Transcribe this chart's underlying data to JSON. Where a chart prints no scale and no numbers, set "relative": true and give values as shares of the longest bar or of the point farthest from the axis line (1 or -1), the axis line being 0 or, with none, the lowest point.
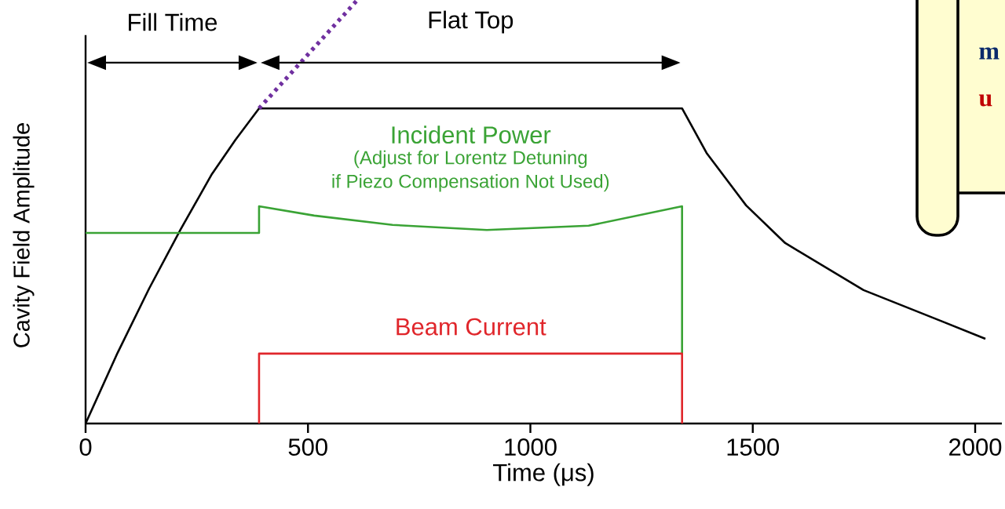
{
  "chart_data": {
    "type": "line",
    "relative": true,
    "xlabel": "Time (μs)",
    "ylabel": "Cavity Field Amplitude",
    "xlim": [
      0,
      2060
    ],
    "xticks": [
      0,
      500,
      1000,
      1500,
      2000
    ],
    "marker": "none",
    "series": [
      {
        "color": "#000000",
        "x": [
          0,
          72,
          143,
          214,
          284,
          337,
          390,
          1341,
          1396,
          1485,
          1573,
          1749,
          1926,
          2023
        ],
        "values": [
          0,
          0.167,
          0.319,
          0.459,
          0.589,
          0.67,
          0.744,
          0.744,
          0.639,
          0.515,
          0.426,
          0.315,
          0.241,
          0.2
        ]
      },
      {
        "name": "Incident Power",
        "color": "#3aa335",
        "x": [
          0,
          390,
          390,
          514,
          690,
          902,
          1131,
          1341,
          1341
        ],
        "values": [
          0.45,
          0.45,
          0.513,
          0.491,
          0.469,
          0.457,
          0.467,
          0.513,
          0.165
        ]
      },
      {
        "name": "Beam Current",
        "color": "#e0262b",
        "x": [
          390,
          390,
          1341,
          1341
        ],
        "values": [
          0,
          0.165,
          0.165,
          0
        ]
      },
      {
        "color": "#7030a0",
        "line_style": "dotted",
        "x": [
          390,
          611
        ],
        "values": [
          0.744,
          1.0
        ]
      }
    ],
    "annotations": [
      "Fill Time",
      "Flat Top",
      "(Adjust for Lorentz Detuning",
      "if Piezo Compensation Not Used)",
      "m",
      "u"
    ]
  }
}
